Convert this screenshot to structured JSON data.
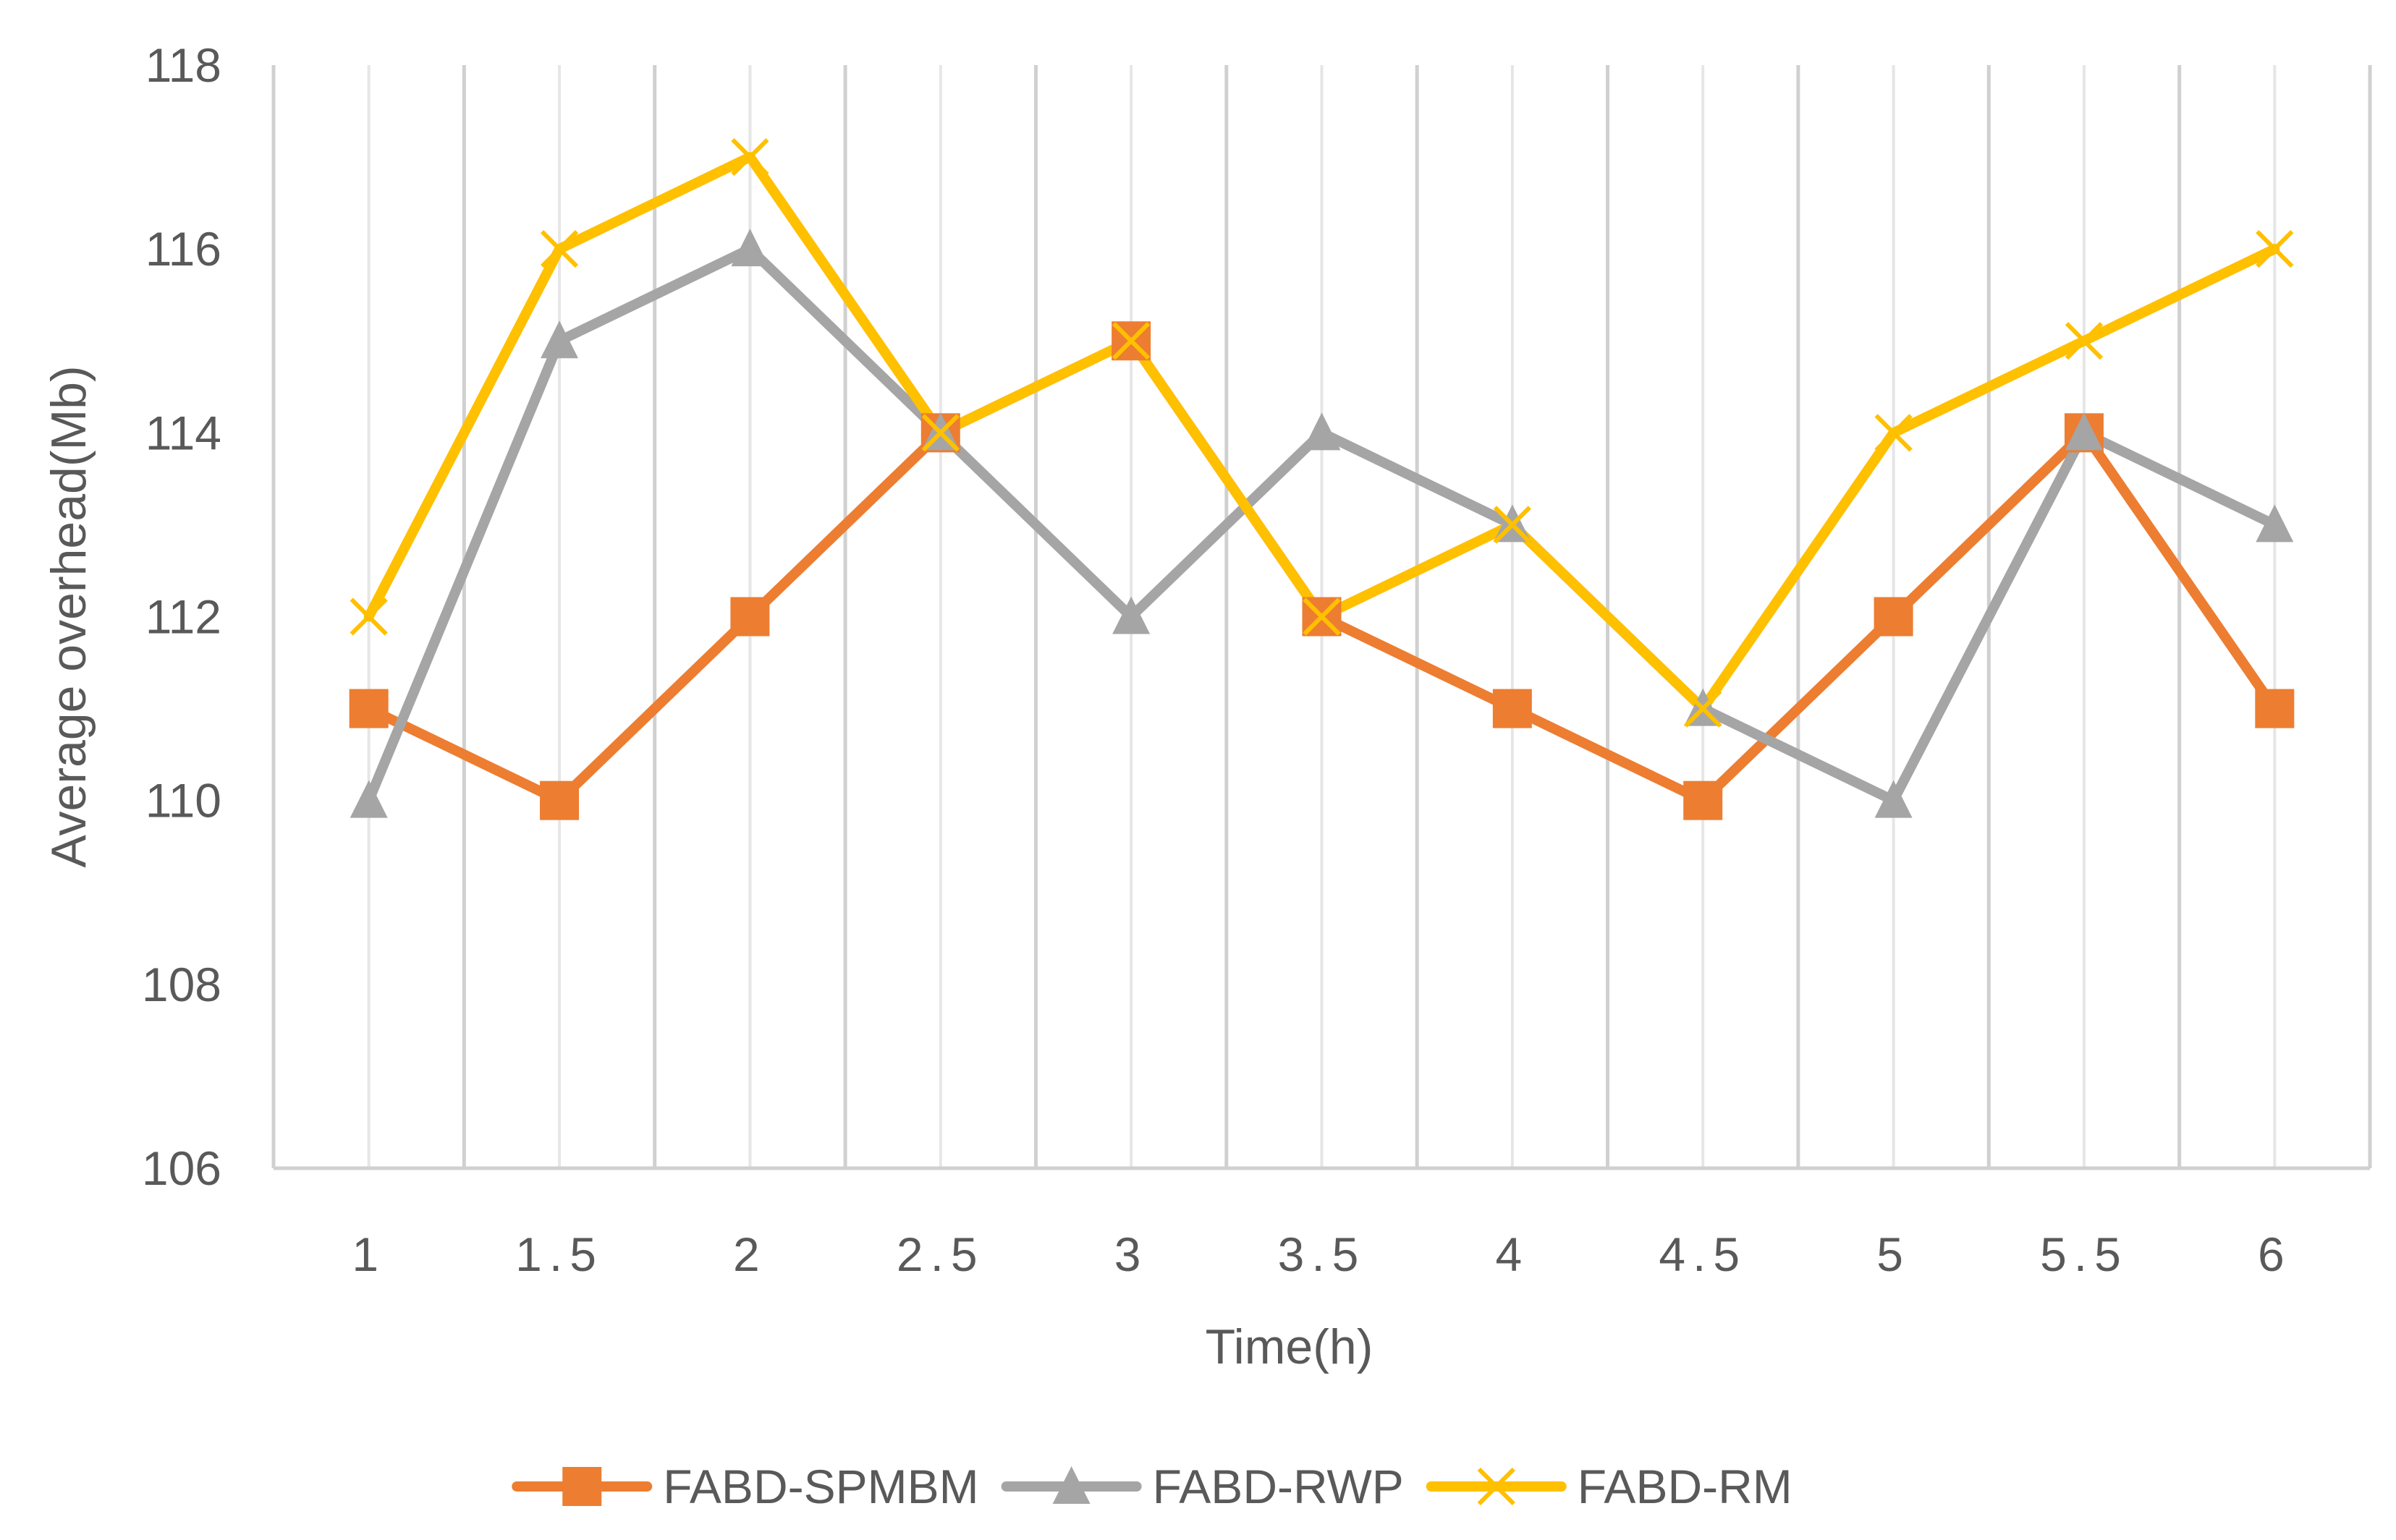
{
  "chart_data": {
    "type": "line",
    "x": [
      "1",
      "1.5",
      "2",
      "2.5",
      "3",
      "3.5",
      "4",
      "4.5",
      "5",
      "5.5",
      "6"
    ],
    "xlabel": "Time(h)",
    "ylabel": "Average overhead(Mb)",
    "ylim": [
      106,
      118
    ],
    "yticks": [
      "106",
      "108",
      "110",
      "112",
      "114",
      "116",
      "118"
    ],
    "grid": "vertical",
    "legend_position": "bottom",
    "series": [
      {
        "name": "FABD-SPMBM",
        "color": "#ED7D31",
        "marker": "square",
        "values": [
          111,
          110,
          112,
          114,
          115,
          112,
          111,
          110,
          112,
          114,
          111
        ]
      },
      {
        "name": "FABD-RWP",
        "color": "#A5A5A5",
        "marker": "triangle",
        "values": [
          110,
          115,
          116,
          114,
          112,
          114,
          113,
          111,
          110,
          114,
          113
        ]
      },
      {
        "name": "FABD-RM",
        "color": "#FFC000",
        "marker": "x",
        "values": [
          112,
          116,
          117,
          114,
          115,
          112,
          113,
          111,
          114,
          115,
          116
        ]
      }
    ]
  }
}
